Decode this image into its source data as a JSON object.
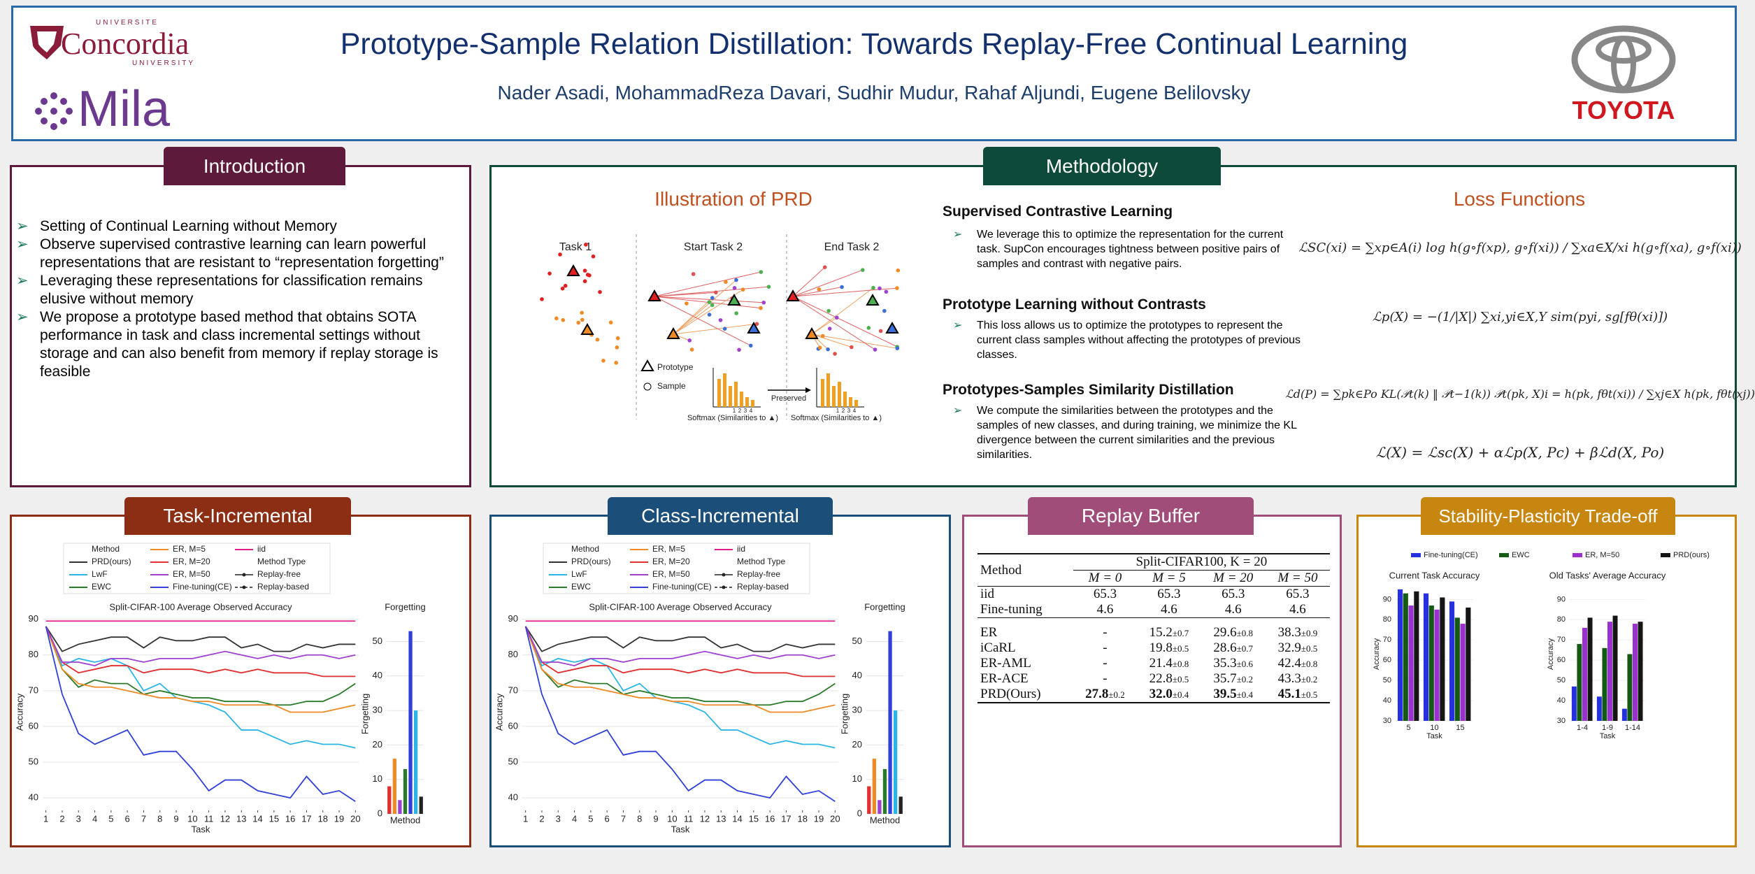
{
  "header": {
    "title": "Prototype-Sample Relation Distillation: Towards Replay-Free Continual Learning",
    "authors": "Nader Asadi, MohammadReza Davari, Sudhir Mudur, Rahaf Aljundi, Eugene Belilovsky",
    "logos": {
      "concordia_top": "UNIVERSITE",
      "concordia": "Concordia",
      "concordia_bottom": "UNIVERSITY",
      "mila": "Mila",
      "toyota": "TOYOTA"
    }
  },
  "introduction": {
    "title": "Introduction",
    "bullets": [
      "Setting of Continual Learning without Memory",
      "Observe supervised contrastive learning can learn powerful representations that are resistant to “representation forgetting”",
      "Leveraging these representations for classification remains elusive without memory",
      "We propose a prototype based method that obtains SOTA performance in task and class incremental settings without storage and can also benefit from memory if replay storage is feasible"
    ]
  },
  "methodology": {
    "title": "Methodology",
    "illustration": {
      "title": "Illustration of PRD",
      "task1": "Task 1",
      "start_task2": "Start Task 2",
      "end_task2": "End Task 2",
      "prototype": "Prototype",
      "sample": "Sample",
      "preserved": "Preserved",
      "softmax": "Softmax (Similarities to ▲)",
      "hist_ticks": [
        "1",
        "2",
        "3",
        "4"
      ]
    },
    "sections": [
      {
        "heading": "Supervised Contrastive Learning",
        "text": "We leverage this to optimize the representation for the current task. SupCon encourages tightness between positive pairs of samples and contrast with negative pairs."
      },
      {
        "heading": "Prototype Learning without Contrasts",
        "text": "This loss allows us to optimize the prototypes to represent the current class samples without affecting the prototypes of previous classes."
      },
      {
        "heading": "Prototypes-Samples Similarity Distillation",
        "text": "We compute the similarities between the prototypes and the samples of new classes, and during training, we minimize the KL divergence between the current similarities and the previous similarities."
      }
    ],
    "loss_functions": {
      "title": "Loss Functions",
      "formulas": [
        "ℒSC(xi) = ∑xp∈A(i) log h(g∘f(xp), g∘f(xi)) / ∑xa∈X/xi h(g∘f(xa), g∘f(xi))",
        "ℒp(X) = −(1/|X|) ∑xi,yi∈X,Y sim(pyi, sg[fθ(xi)])",
        "ℒd(P) = ∑pk∈Po KL(𝒫t(k) ‖ 𝒫t−1(k))   𝒫t(pk, X)i = h(pk, fθt(xi)) / ∑xj∈X h(pk, fθt(xj))",
        "ℒ(X) = ℒsc(X) + αℒp(X, Pc) + βℒd(X, Po)"
      ]
    }
  },
  "task_incremental": {
    "title": "Task-Incremental",
    "chart_data": [
      {
        "type": "line",
        "title": "Split-CIFAR-100 Average Observed Accuracy",
        "x_label": "Task",
        "y_label": "Accuracy",
        "legend_title": "Method",
        "legend_subtitle": "Method Type",
        "method_types": [
          "Replay-free",
          "Replay-based"
        ],
        "x": [
          1,
          2,
          3,
          4,
          5,
          6,
          7,
          8,
          9,
          10,
          11,
          12,
          13,
          14,
          15,
          16,
          17,
          18,
          19,
          20
        ],
        "xlim": [
          0.8,
          20.2
        ],
        "xticks": [
          1,
          2,
          3,
          4,
          5,
          6,
          7,
          8,
          9,
          10,
          11,
          12,
          13,
          14,
          15,
          16,
          17,
          18,
          19,
          20
        ],
        "ylim": [
          36.5,
          91.5
        ],
        "yticks": [
          40,
          50,
          60,
          70,
          80,
          90
        ],
        "series": [
          {
            "name": "PRD(ours)",
            "color": "#333333",
            "values": [
              88,
              81,
              83,
              84,
              85,
              85,
              82,
              85,
              84,
              84,
              85,
              85,
              82,
              83,
              81,
              81,
              83,
              82,
              83,
              83
            ]
          },
          {
            "name": "LwF",
            "color": "#2bb5e6",
            "values": [
              88,
              77,
              79,
              78,
              79,
              77,
              70,
              72,
              68,
              67,
              66,
              64,
              59,
              59,
              57,
              55,
              56,
              55,
              55,
              54
            ]
          },
          {
            "name": "EWC",
            "color": "#2a7a2a",
            "values": [
              88,
              76,
              71,
              73,
              72,
              72,
              69,
              70,
              69,
              68,
              68,
              67,
              67,
              67,
              66,
              66,
              67,
              67,
              69,
              72
            ]
          },
          {
            "name": "ER, M=5",
            "color": "#f08a24",
            "values": [
              88,
              76,
              72,
              71,
              71,
              70,
              69,
              68,
              68,
              67,
              67,
              66,
              66,
              66,
              66,
              64,
              64,
              64,
              65,
              66
            ]
          },
          {
            "name": "ER, M=20",
            "color": "#e03030",
            "values": [
              88,
              78,
              75,
              76,
              77,
              77,
              75,
              76,
              76,
              76,
              75,
              76,
              75,
              76,
              75,
              75,
              75,
              74,
              74,
              74
            ]
          },
          {
            "name": "ER, M=50",
            "color": "#a040d0",
            "values": [
              88,
              78,
              78,
              77,
              79,
              79,
              78,
              79,
              79,
              79,
              80,
              81,
              80,
              79,
              80,
              79,
              80,
              80,
              79,
              80
            ]
          },
          {
            "name": "Fine-tuning(CE)",
            "color": "#3040d8",
            "values": [
              88,
              69,
              58,
              55,
              57,
              59,
              52,
              53,
              53,
              48,
              42,
              45,
              45,
              42,
              41,
              40,
              46,
              41,
              42,
              39
            ]
          },
          {
            "name": "iid",
            "color": "#e0208a",
            "values": [
              89.5,
              89.5,
              89.5,
              89.5,
              89.5,
              89.5,
              89.5,
              89.5,
              89.5,
              89.5,
              89.5,
              89.5,
              89.5,
              89.5,
              89.5,
              89.5,
              89.5,
              89.5,
              89.5,
              89.5
            ]
          }
        ]
      },
      {
        "type": "bar",
        "title": "Forgetting",
        "x_label": "Method",
        "y_label": "Forgetting",
        "categories": [
          null,
          null,
          null,
          null,
          null,
          null,
          null
        ],
        "values": [
          8,
          16,
          4,
          13,
          53,
          30,
          5
        ],
        "colors": [
          "#e03030",
          "#f08a24",
          "#a040d0",
          "#2a7a2a",
          "#3040d8",
          "#2bb5e6",
          "#222222"
        ],
        "ylim": [
          0,
          58
        ],
        "yticks": [
          0,
          10,
          20,
          30,
          40,
          50
        ]
      }
    ]
  },
  "class_incremental": {
    "title": "Class-Incremental",
    "chart_data": [
      {
        "type": "line",
        "title": "Split-CIFAR-100 Average Observed Accuracy",
        "x_label": "Task",
        "y_label": "Accuracy",
        "legend_title": "Method",
        "legend_subtitle": "Method Type",
        "method_types": [
          "Replay-free",
          "Replay-based"
        ],
        "x": [
          1,
          2,
          3,
          4,
          5,
          6,
          7,
          8,
          9,
          10,
          11,
          12,
          13,
          14,
          15,
          16,
          17,
          18,
          19,
          20
        ],
        "xlim": [
          0.8,
          20.2
        ],
        "xticks": [
          1,
          2,
          3,
          4,
          5,
          6,
          7,
          8,
          9,
          10,
          11,
          12,
          13,
          14,
          15,
          16,
          17,
          18,
          19,
          20
        ],
        "ylim": [
          36.5,
          91.5
        ],
        "yticks": [
          40,
          50,
          60,
          70,
          80,
          90
        ],
        "series": [
          {
            "name": "PRD(ours)",
            "color": "#333333",
            "values": [
              88,
              81,
              83,
              84,
              85,
              85,
              82,
              85,
              84,
              84,
              85,
              85,
              82,
              83,
              81,
              81,
              83,
              82,
              83,
              83
            ]
          },
          {
            "name": "LwF",
            "color": "#2bb5e6",
            "values": [
              88,
              77,
              79,
              78,
              79,
              77,
              70,
              72,
              68,
              67,
              66,
              64,
              59,
              59,
              57,
              55,
              56,
              55,
              55,
              54
            ]
          },
          {
            "name": "EWC",
            "color": "#2a7a2a",
            "values": [
              88,
              76,
              71,
              73,
              72,
              72,
              69,
              70,
              69,
              68,
              68,
              67,
              67,
              67,
              66,
              66,
              67,
              67,
              69,
              72
            ]
          },
          {
            "name": "ER, M=5",
            "color": "#f08a24",
            "values": [
              88,
              76,
              72,
              71,
              71,
              70,
              69,
              68,
              68,
              67,
              67,
              66,
              66,
              66,
              66,
              64,
              64,
              64,
              65,
              66
            ]
          },
          {
            "name": "ER, M=20",
            "color": "#e03030",
            "values": [
              88,
              78,
              75,
              76,
              77,
              77,
              75,
              76,
              76,
              76,
              75,
              76,
              75,
              76,
              75,
              75,
              75,
              74,
              74,
              74
            ]
          },
          {
            "name": "ER, M=50",
            "color": "#a040d0",
            "values": [
              88,
              78,
              78,
              77,
              79,
              79,
              78,
              79,
              79,
              79,
              80,
              81,
              80,
              79,
              80,
              79,
              80,
              80,
              79,
              80
            ]
          },
          {
            "name": "Fine-tuning(CE)",
            "color": "#3040d8",
            "values": [
              88,
              69,
              58,
              55,
              57,
              59,
              52,
              53,
              53,
              48,
              42,
              45,
              45,
              42,
              41,
              40,
              46,
              41,
              42,
              39
            ]
          },
          {
            "name": "iid",
            "color": "#e0208a",
            "values": [
              89.5,
              89.5,
              89.5,
              89.5,
              89.5,
              89.5,
              89.5,
              89.5,
              89.5,
              89.5,
              89.5,
              89.5,
              89.5,
              89.5,
              89.5,
              89.5,
              89.5,
              89.5,
              89.5,
              89.5
            ]
          }
        ]
      },
      {
        "type": "bar",
        "title": "Forgetting",
        "x_label": "Method",
        "y_label": "Forgetting",
        "categories": [
          null,
          null,
          null,
          null,
          null,
          null,
          null
        ],
        "values": [
          8,
          16,
          4,
          13,
          53,
          30,
          5
        ],
        "colors": [
          "#e03030",
          "#f08a24",
          "#a040d0",
          "#2a7a2a",
          "#3040d8",
          "#2bb5e6",
          "#222222"
        ],
        "ylim": [
          0,
          58
        ],
        "yticks": [
          0,
          10,
          20,
          30,
          40,
          50
        ]
      }
    ]
  },
  "replay_buffer": {
    "title": "Replay Buffer",
    "table": {
      "method_header": "Method",
      "group_header": "Split-CIFAR100, K = 20",
      "columns": [
        "M = 0",
        "M = 5",
        "M = 20",
        "M = 50"
      ],
      "rows": [
        {
          "method": "iid",
          "cells": [
            [
              "65.3"
            ],
            [
              "65.3"
            ],
            [
              "65.3"
            ],
            [
              "65.3"
            ]
          ]
        },
        {
          "method": "Fine-tuning",
          "cells": [
            [
              "4.6"
            ],
            [
              "4.6"
            ],
            [
              "4.6"
            ],
            [
              "4.6"
            ]
          ]
        },
        {
          "method": "ER",
          "cells": [
            [
              "-"
            ],
            [
              "15.2",
              "±0.7"
            ],
            [
              "29.6",
              "±0.8"
            ],
            [
              "38.3",
              "±0.9"
            ]
          ]
        },
        {
          "method": "iCaRL",
          "cells": [
            [
              "-"
            ],
            [
              "19.8",
              "±0.5"
            ],
            [
              "28.6",
              "±0.7"
            ],
            [
              "32.9",
              "±0.5"
            ]
          ]
        },
        {
          "method": "ER-AML",
          "cells": [
            [
              "-"
            ],
            [
              "21.4",
              "±0.8"
            ],
            [
              "35.3",
              "±0.6"
            ],
            [
              "42.4",
              "±0.8"
            ]
          ]
        },
        {
          "method": "ER-ACE",
          "cells": [
            [
              "-"
            ],
            [
              "22.8",
              "±0.5"
            ],
            [
              "35.7",
              "±0.2"
            ],
            [
              "43.3",
              "±0.2"
            ]
          ]
        },
        {
          "method": "PRD(Ours)",
          "bold": true,
          "cells": [
            [
              "27.8",
              "±0.2"
            ],
            [
              "32.0",
              "±0.4"
            ],
            [
              "39.5",
              "±0.4"
            ],
            [
              "45.1",
              "±0.5"
            ]
          ]
        }
      ]
    }
  },
  "stability_plasticity": {
    "title": "Stability-Plasticity Trade-off",
    "chart_data": [
      {
        "type": "bar",
        "title": "Current Task Accuracy",
        "x_label": "Task",
        "y_label": "Accuracy",
        "categories": [
          "5",
          "10",
          "15"
        ],
        "ylim": [
          30,
          96
        ],
        "yticks": [
          30,
          40,
          50,
          60,
          70,
          80,
          90
        ],
        "series": [
          {
            "name": "Fine-tuning(CE)",
            "color": "#2530e0",
            "values": [
              95,
              93,
              89
            ]
          },
          {
            "name": "EWC",
            "color": "#145a14",
            "values": [
              93,
              87,
              81
            ]
          },
          {
            "name": "ER, M=50",
            "color": "#9a30d0",
            "values": [
              87,
              85,
              78
            ]
          },
          {
            "name": "PRD(ours)",
            "color": "#151515",
            "values": [
              94,
              91,
              86
            ]
          }
        ]
      },
      {
        "type": "bar",
        "title": "Old Tasks' Average Accuracy",
        "x_label": "Task",
        "y_label": "Accuracy",
        "categories": [
          "1-4",
          "1-9",
          "1-14"
        ],
        "ylim": [
          30,
          96
        ],
        "yticks": [
          30,
          40,
          50,
          60,
          70,
          80,
          90
        ],
        "series": [
          {
            "color": "#2530e0",
            "values": [
              47,
              42,
              36
            ]
          },
          {
            "color": "#145a14",
            "values": [
              68,
              66,
              63
            ]
          },
          {
            "color": "#9a30d0",
            "values": [
              76,
              79,
              78
            ]
          },
          {
            "color": "#151515",
            "values": [
              81,
              82,
              79
            ]
          }
        ]
      }
    ]
  }
}
